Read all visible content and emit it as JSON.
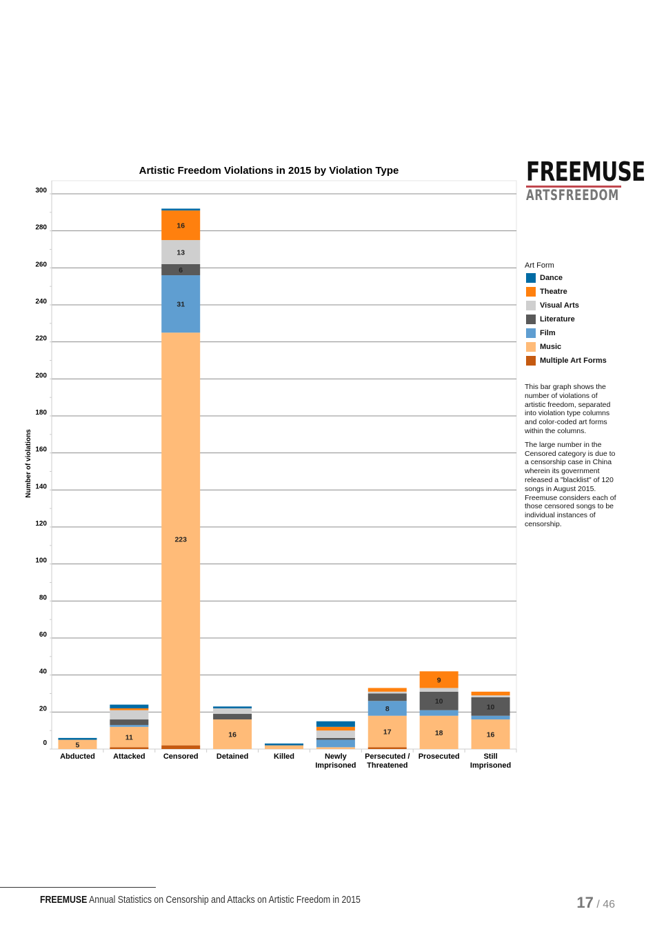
{
  "chart_data": {
    "type": "bar",
    "stacked": true,
    "title": "Artistic Freedom Violations in 2015 by Violation Type",
    "xlabel": "",
    "ylabel": "Number of violations",
    "ylim": [
      0,
      300
    ],
    "yticks": [
      "0",
      "20",
      "40",
      "60",
      "80",
      "100",
      "120",
      "140",
      "160",
      "180",
      "200",
      "220",
      "240",
      "260",
      "280",
      "300"
    ],
    "grid": true,
    "legend_placement": "right",
    "legend_title": "Art Form",
    "categories": [
      [
        "Abducted"
      ],
      [
        "Attacked"
      ],
      [
        "Censored"
      ],
      [
        "Detained"
      ],
      [
        "Killed"
      ],
      [
        "Newly",
        "Imprisoned"
      ],
      [
        "Persecuted /",
        "Threatened"
      ],
      [
        "Prosecuted"
      ],
      [
        "Still",
        "Imprisoned"
      ]
    ],
    "series": [
      {
        "name": "Multiple Art Forms",
        "color": "#c55a11",
        "values": [
          0,
          1,
          2,
          0,
          0,
          0,
          1,
          0,
          0
        ],
        "labeled": [
          false,
          false,
          false,
          false,
          false,
          false,
          false,
          false,
          false
        ]
      },
      {
        "name": "Music",
        "color": "#ffbb78",
        "values": [
          5,
          11,
          223,
          16,
          2,
          1,
          17,
          18,
          16
        ],
        "labeled": [
          true,
          true,
          true,
          true,
          false,
          false,
          true,
          true,
          true
        ]
      },
      {
        "name": "Film",
        "color": "#5f9ed1",
        "values": [
          0,
          1,
          31,
          0,
          0,
          4,
          8,
          3,
          2
        ],
        "labeled": [
          false,
          false,
          true,
          false,
          false,
          false,
          true,
          false,
          false
        ]
      },
      {
        "name": "Literature",
        "color": "#595959",
        "values": [
          0,
          3,
          6,
          3,
          0,
          1,
          4,
          10,
          10
        ],
        "labeled": [
          false,
          false,
          true,
          false,
          false,
          false,
          false,
          true,
          true
        ]
      },
      {
        "name": "Visual Arts",
        "color": "#cfcfcf",
        "values": [
          0,
          5,
          13,
          3,
          0,
          4,
          1,
          2,
          1
        ],
        "labeled": [
          false,
          false,
          true,
          false,
          false,
          false,
          false,
          false,
          false
        ]
      },
      {
        "name": "Theatre",
        "color": "#ff800e",
        "values": [
          0,
          1,
          16,
          0,
          0,
          2,
          2,
          9,
          2
        ],
        "labeled": [
          false,
          false,
          true,
          false,
          false,
          false,
          false,
          true,
          false
        ]
      },
      {
        "name": "Dance",
        "color": "#006ba4",
        "values": [
          1,
          2,
          1,
          1,
          1,
          3,
          0,
          0,
          0
        ],
        "labeled": [
          false,
          false,
          false,
          false,
          false,
          false,
          false,
          false,
          false
        ]
      }
    ]
  },
  "legend_order": [
    "Dance",
    "Theatre",
    "Visual Arts",
    "Literature",
    "Film",
    "Music",
    "Multiple Art Forms"
  ],
  "logo": {
    "main": "FREEMUSE",
    "sub": "ARTSFREEDOM"
  },
  "description": [
    "This bar graph shows the number of violations of artistic freedom, separated into violation type columns and color-coded art forms within the columns.",
    "The large number in the Censored category is due to a censorship case in China wherein its government released a \"blacklist\" of 120 songs in August 2015. Freemuse considers each of those censored songs to be individual instances of censorship."
  ],
  "footer": {
    "brand": "FREEMUSE",
    "text": "Annual Statistics on Censorship and Attacks on Artistic Freedom in 2015",
    "page": "17",
    "total": "/ 46"
  }
}
